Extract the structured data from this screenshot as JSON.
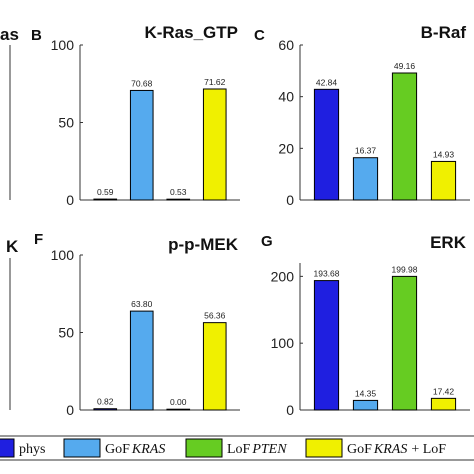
{
  "partial_labels": {
    "top_left_title": "as",
    "bottom_left_title": "K"
  },
  "chart_data": [
    {
      "panel": "B",
      "type": "bar",
      "title": "K-Ras_GTP",
      "categories": [
        "phys",
        "GoF KRAS",
        "LoF PTEN",
        "GoF KRAS + LoF PTEN"
      ],
      "values": [
        0.59,
        70.68,
        0.53,
        71.62
      ],
      "value_labels": [
        "0.59",
        "70.68",
        "0.53",
        "71.62"
      ],
      "ylim": [
        0,
        100
      ],
      "yticks": [
        "0",
        "50",
        "100"
      ],
      "ytick_values": [
        0,
        50,
        100
      ]
    },
    {
      "panel": "C",
      "type": "bar",
      "title": "B-Raf",
      "categories": [
        "phys",
        "GoF KRAS",
        "LoF PTEN",
        "GoF KRAS + LoF PTEN"
      ],
      "values": [
        42.84,
        16.37,
        49.16,
        14.93
      ],
      "value_labels": [
        "42.84",
        "16.37",
        "49.16",
        "14.93"
      ],
      "ylim": [
        0,
        60
      ],
      "yticks": [
        "0",
        "20",
        "40",
        "60"
      ],
      "ytick_values": [
        0,
        20,
        40,
        60
      ]
    },
    {
      "panel": "F",
      "type": "bar",
      "title": "p-p-MEK",
      "categories": [
        "phys",
        "GoF KRAS",
        "LoF PTEN",
        "GoF KRAS + LoF PTEN"
      ],
      "values": [
        0.82,
        63.8,
        0.0,
        56.36
      ],
      "value_labels": [
        "0.82",
        "63.80",
        "0.00",
        "56.36"
      ],
      "ylim": [
        0,
        100
      ],
      "yticks": [
        "0",
        "50",
        "100"
      ],
      "ytick_values": [
        0,
        50,
        100
      ]
    },
    {
      "panel": "G",
      "type": "bar",
      "title": "ERK",
      "categories": [
        "phys",
        "GoF KRAS",
        "LoF PTEN",
        "GoF KRAS + LoF PTEN"
      ],
      "values": [
        193.68,
        14.35,
        199.98,
        17.42
      ],
      "value_labels": [
        "193.68",
        "14.35",
        "199.98",
        "17.42"
      ],
      "ylim": [
        0,
        220
      ],
      "yticks": [
        "0",
        "100",
        "200"
      ],
      "ytick_values": [
        0,
        100,
        200
      ]
    }
  ],
  "colors": {
    "phys": "#1f1fe0",
    "gof_kras": "#55aaee",
    "lof_pten": "#66cc22",
    "gof_kras_lof_pten": "#f0f000"
  },
  "legend": {
    "items": [
      {
        "prefix": "phys",
        "gene": "",
        "suffix": "",
        "color_key": "phys"
      },
      {
        "prefix": "GoF",
        "gene": "KRAS",
        "suffix": "",
        "color_key": "gof_kras"
      },
      {
        "prefix": "LoF",
        "gene": "PTEN",
        "suffix": "",
        "color_key": "lof_pten"
      },
      {
        "prefix": "GoF",
        "gene": "KRAS",
        "suffix": "+ LoF",
        "color_key": "gof_kras_lof_pten"
      }
    ]
  }
}
